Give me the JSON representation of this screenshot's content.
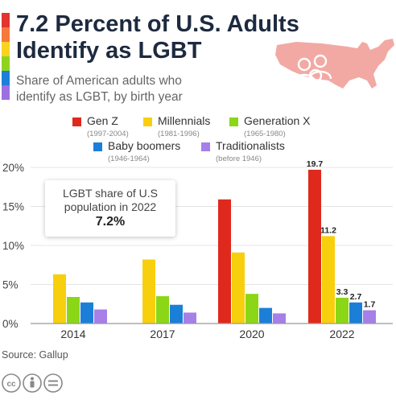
{
  "header": {
    "title_line1": "7.2 Percent of U.S. Adults",
    "title_line2": "Identify as LGBT",
    "subtitle_line1": "Share of American adults who",
    "subtitle_line2": "identify as LGBT, by birth year"
  },
  "colors": {
    "rainbow": [
      "#e3342f",
      "#f6783b",
      "#f8d31f",
      "#8ed41f",
      "#1c7fd9",
      "#9d6fe0"
    ],
    "map": "#f2a9a4",
    "icon_outline": "#ffffff",
    "gridline": "#e4e4e4",
    "axis": "#999999"
  },
  "legend": [
    {
      "name": "Gen Z",
      "years": "(1997-2004)",
      "color": "#e0291d"
    },
    {
      "name": "Millennials",
      "years": "(1981-1996)",
      "color": "#f8cf0d"
    },
    {
      "name": "Generation X",
      "years": "(1965-1980)",
      "color": "#8bd617"
    },
    {
      "name": "Baby boomers",
      "years": "(1946-1964)",
      "color": "#1b7fd8"
    },
    {
      "name": "Traditionalists",
      "years": "(before 1946)",
      "color": "#a67fe9"
    }
  ],
  "callout": {
    "text_line1": "LGBT share of U.S",
    "text_line2": "population in 2022",
    "value": "7.2%"
  },
  "chart_data": {
    "type": "bar",
    "title": "7.2 Percent of U.S. Adults Identify as LGBT",
    "categories": [
      "2014",
      "2017",
      "2020",
      "2022"
    ],
    "y_ticks": [
      "0%",
      "5%",
      "10%",
      "15%",
      "20%"
    ],
    "ylim": [
      0,
      20
    ],
    "grid": true,
    "series": [
      {
        "name": "Gen Z",
        "color": "#e0291d",
        "values": [
          null,
          null,
          15.9,
          19.7
        ],
        "labels": [
          "",
          "",
          "",
          "19.7"
        ]
      },
      {
        "name": "Millennials",
        "color": "#f8cf0d",
        "values": [
          6.3,
          8.2,
          9.1,
          11.2
        ],
        "labels": [
          "",
          "",
          "",
          "11.2"
        ]
      },
      {
        "name": "Generation X",
        "color": "#8bd617",
        "values": [
          3.4,
          3.5,
          3.8,
          3.3
        ],
        "labels": [
          "",
          "",
          "",
          "3.3"
        ]
      },
      {
        "name": "Baby boomers",
        "color": "#1b7fd8",
        "values": [
          2.7,
          2.4,
          2.0,
          2.7
        ],
        "labels": [
          "",
          "",
          "",
          "2.7"
        ]
      },
      {
        "name": "Traditionalists",
        "color": "#a67fe9",
        "values": [
          1.8,
          1.4,
          1.3,
          1.7
        ],
        "labels": [
          "",
          "",
          "",
          "1.7"
        ]
      }
    ]
  },
  "footer": {
    "source": "Source: Gallup",
    "license_icons": [
      "cc-icon",
      "attribution-icon",
      "no-derivatives-icon"
    ]
  }
}
